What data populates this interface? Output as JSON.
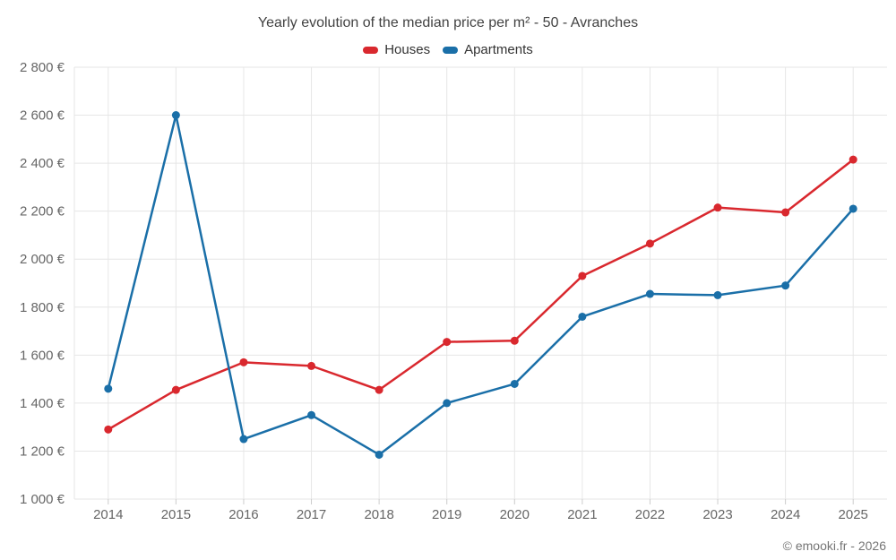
{
  "page": {
    "footer": "© emooki.fr - 2026"
  },
  "colors": {
    "houses": "#d9282e",
    "apartments": "#1a6fa8",
    "grid": "#e6e6e6",
    "tick": "#cccccc",
    "axis_label": "#666666",
    "title_text": "#424242",
    "footer_text": "#757575"
  },
  "chart_data": {
    "type": "line",
    "title": "Yearly evolution of the median price per m² - 50 - Avranches",
    "categories": [
      "2014",
      "2015",
      "2016",
      "2017",
      "2018",
      "2019",
      "2020",
      "2021",
      "2022",
      "2023",
      "2024",
      "2025"
    ],
    "series": [
      {
        "name": "Houses",
        "color": "#d9282e",
        "values": [
          1290,
          1455,
          1570,
          1555,
          1455,
          1655,
          1660,
          1930,
          2065,
          2215,
          2195,
          2415
        ]
      },
      {
        "name": "Apartments",
        "color": "#1a6fa8",
        "values": [
          1460,
          2600,
          1250,
          1350,
          1185,
          1400,
          1480,
          1760,
          1855,
          1850,
          1890,
          2210
        ]
      }
    ],
    "y_axis": {
      "min": 1000,
      "max": 2800,
      "tick_step": 200,
      "unit": "€",
      "tick_labels": [
        "1 000 €",
        "1 200 €",
        "1 400 €",
        "1 600 €",
        "1 800 €",
        "2 000 €",
        "2 200 €",
        "2 400 €",
        "2 600 €",
        "2 800 €"
      ]
    },
    "x_axis": {
      "label": ""
    },
    "grid": true,
    "legend_position": "top",
    "marker": "circle"
  }
}
